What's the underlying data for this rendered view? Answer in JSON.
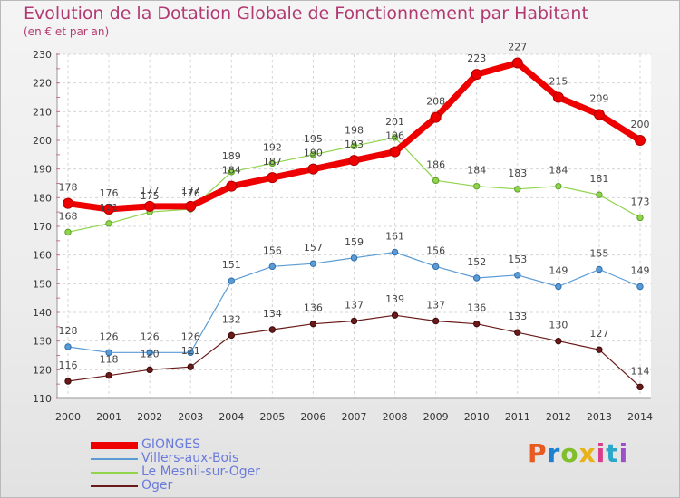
{
  "header": {
    "title": "Evolution de la Dotation Globale de Fonctionnement par Habitant",
    "subtitle": "(en € et par an)"
  },
  "logo": {
    "text": "Proxiti",
    "colors": [
      "#e85a1f",
      "#1c7fd0",
      "#7fbf2a",
      "#e8b21b",
      "#d93c8a",
      "#2aa7c9",
      "#9c4fc8"
    ]
  },
  "chart_data": {
    "type": "line",
    "title": "Evolution de la Dotation Globale de Fonctionnement par Habitant",
    "subtitle": "(en € et par an)",
    "xlabel": "",
    "ylabel": "",
    "x": [
      "2000",
      "2001",
      "2002",
      "2003",
      "2004",
      "2005",
      "2006",
      "2007",
      "2008",
      "2009",
      "2010",
      "2011",
      "2012",
      "2013",
      "2014"
    ],
    "ylim": [
      110,
      230
    ],
    "yticks": [
      110,
      120,
      130,
      140,
      150,
      160,
      170,
      180,
      190,
      200,
      210,
      220,
      230
    ],
    "grid": true,
    "legend_position": "bottom-left",
    "series": [
      {
        "name": "GIONGES",
        "color": "#ee0000",
        "values": [
          178,
          176,
          177,
          177,
          184,
          187,
          190,
          193,
          196,
          208,
          223,
          227,
          215,
          209,
          200
        ]
      },
      {
        "name": "Villers-aux-Bois",
        "color": "#5b9bd5",
        "values": [
          128,
          126,
          126,
          126,
          151,
          156,
          157,
          159,
          161,
          156,
          152,
          153,
          149,
          155,
          149
        ]
      },
      {
        "name": "Le Mesnil-sur-Oger",
        "color": "#8fd44b",
        "values": [
          168,
          171,
          175,
          176,
          189,
          192,
          195,
          198,
          201,
          186,
          184,
          183,
          184,
          181,
          173
        ]
      },
      {
        "name": "Oger",
        "color": "#6b1a1a",
        "values": [
          116,
          118,
          120,
          121,
          132,
          134,
          136,
          137,
          139,
          137,
          136,
          133,
          130,
          127,
          114
        ]
      }
    ]
  }
}
